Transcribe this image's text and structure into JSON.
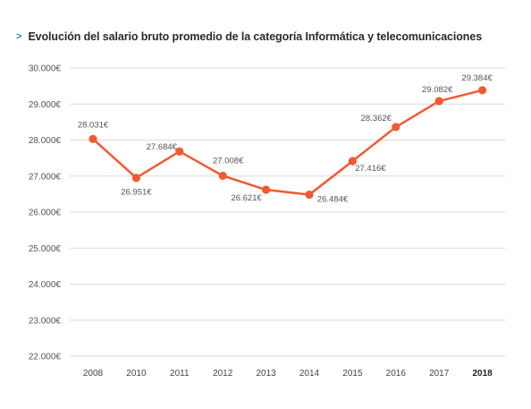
{
  "title": {
    "marker": ">",
    "text": "Evolución del salario bruto promedio de la categoría Informática y telecomunicaciones"
  },
  "colors": {
    "line": "#f25a32",
    "marker_accent": "#2e86c1",
    "grid": "#d9d9d9",
    "text": "#555555"
  },
  "chart_data": {
    "type": "line",
    "categories": [
      "2008",
      "2010",
      "2011",
      "2012",
      "2013",
      "2014",
      "2015",
      "2016",
      "2017",
      "2018"
    ],
    "series": [
      {
        "values": [
          28031,
          26951,
          27684,
          27008,
          26621,
          26484,
          27416,
          28362,
          29082,
          29384
        ],
        "labels": [
          "28.031€",
          "26.951€",
          "27.684€",
          "27.008€",
          "26.621€",
          "26.484€",
          "27.416€",
          "28.362€",
          "29.082€",
          "29.384€"
        ]
      }
    ],
    "ylim": [
      22000,
      30000
    ],
    "yticks": [
      22000,
      23000,
      24000,
      25000,
      26000,
      27000,
      28000,
      29000,
      30000
    ],
    "ytick_labels": [
      "22.000€",
      "23.000€",
      "24.000€",
      "25.000€",
      "26.000€",
      "27.000€",
      "28.000€",
      "29.000€",
      "30.000€"
    ],
    "bold_category": "2018",
    "grid": true,
    "legend": "none",
    "xlabel": "",
    "ylabel": ""
  }
}
